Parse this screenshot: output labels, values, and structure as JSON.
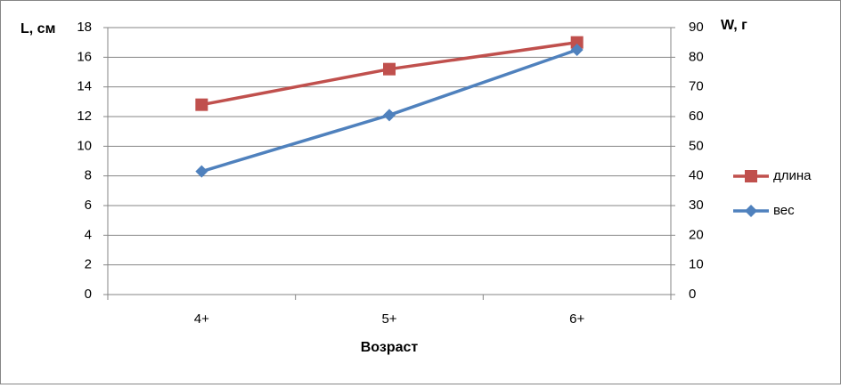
{
  "chart_data": {
    "type": "line",
    "y_label": "L, см",
    "y2_label": "W, г",
    "x_label": "Возраст",
    "categories": [
      "4+",
      "5+",
      "6+"
    ],
    "ylim": [
      0,
      18
    ],
    "yticks": [
      0,
      2,
      4,
      6,
      8,
      10,
      12,
      14,
      16,
      18
    ],
    "y2lim": [
      0,
      90
    ],
    "y2ticks": [
      0,
      10,
      20,
      30,
      40,
      50,
      60,
      70,
      80,
      90
    ],
    "grid": true,
    "legend": "right",
    "series": [
      {
        "name": "длина",
        "color": "#c0504d",
        "marker": "square",
        "values": [
          12.8,
          15.2,
          17.0
        ]
      },
      {
        "name": "вес",
        "color": "#4f81bd",
        "marker": "diamond",
        "axis": "y2",
        "values": [
          41.5,
          60.5,
          82.5
        ]
      }
    ]
  }
}
